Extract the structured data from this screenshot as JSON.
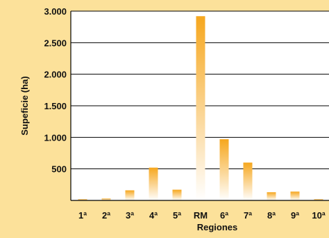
{
  "colors": {
    "background": "#FCE19A",
    "plot_background": "#FFFFFF",
    "bar_top": "#F6A71E",
    "bar_bottom": "#FFFFFF",
    "gridline": "#000000"
  },
  "chart_data": {
    "type": "bar",
    "title": "",
    "xlabel": "Regiones",
    "ylabel": "Supeficie (ha)",
    "categories": [
      "1ª",
      "2ª",
      "3ª",
      "4ª",
      "5ª",
      "RM",
      "6ª",
      "7ª",
      "8ª",
      "9ª",
      "10ª"
    ],
    "values": [
      20,
      30,
      160,
      520,
      170,
      2920,
      970,
      600,
      130,
      140,
      20
    ],
    "ylim": [
      0,
      3000
    ],
    "yticks": [
      500,
      1000,
      1500,
      2000,
      2500,
      3000
    ],
    "ytick_labels": [
      "500",
      "1.000",
      "1.500",
      "2.000",
      "2.500",
      "3.000"
    ],
    "grid": true,
    "legend": "none"
  }
}
